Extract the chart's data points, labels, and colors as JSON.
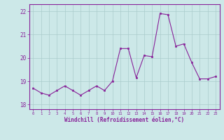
{
  "x": [
    0,
    1,
    2,
    3,
    4,
    5,
    6,
    7,
    8,
    9,
    10,
    11,
    12,
    13,
    14,
    15,
    16,
    17,
    18,
    19,
    20,
    21,
    22,
    23
  ],
  "y": [
    18.7,
    18.5,
    18.4,
    18.6,
    18.8,
    18.6,
    18.4,
    18.6,
    18.8,
    18.6,
    19.0,
    20.4,
    20.4,
    19.15,
    20.1,
    20.05,
    21.9,
    21.85,
    20.5,
    20.6,
    19.8,
    19.1,
    19.1,
    19.2
  ],
  "line_color": "#882299",
  "marker_color": "#882299",
  "bg_color": "#cce8e8",
  "grid_color": "#aacccc",
  "xlabel": "Windchill (Refroidissement éolien,°C)",
  "xlabel_color": "#882299",
  "tick_color": "#882299",
  "spine_color": "#882299",
  "ylim": [
    17.8,
    22.3
  ],
  "xlim": [
    -0.5,
    23.5
  ],
  "yticks": [
    18,
    19,
    20,
    21,
    22
  ],
  "xticks": [
    0,
    1,
    2,
    3,
    4,
    5,
    6,
    7,
    8,
    9,
    10,
    11,
    12,
    13,
    14,
    15,
    16,
    17,
    18,
    19,
    20,
    21,
    22,
    23
  ]
}
